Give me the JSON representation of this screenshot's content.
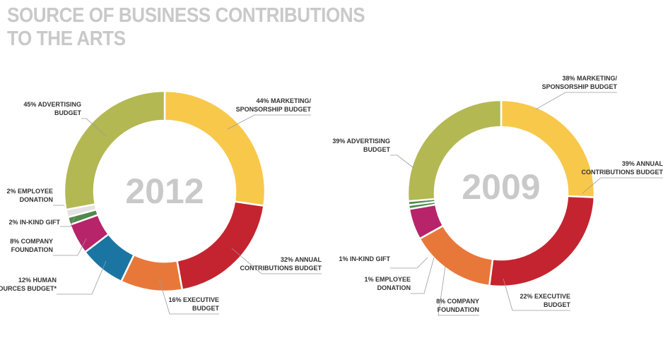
{
  "title": {
    "line1": "SOURCE OF BUSINESS CONTRIBUTIONS",
    "line2": "TO THE ARTS"
  },
  "chart_data": [
    {
      "type": "pie",
      "center_label": "2012",
      "slices": [
        {
          "value": 44,
          "label": [
            "44% MARKETING/",
            "SPONSORSHIP BUDGET"
          ],
          "color": "#f8c84b"
        },
        {
          "value": 32,
          "label": [
            "32% ANNUAL",
            "CONTRIBUTIONS BUDGET"
          ],
          "color": "#c4242f"
        },
        {
          "value": 16,
          "label": [
            "16% EXECUTIVE",
            "BUDGET"
          ],
          "color": "#e8783a"
        },
        {
          "value": 12,
          "label": [
            "12% HUMAN",
            "RESOURCES BUDGET*"
          ],
          "color": "#1a75a3"
        },
        {
          "value": 8,
          "label": [
            "8% COMPANY",
            "FOUNDATION"
          ],
          "color": "#b7246a"
        },
        {
          "value": 2,
          "label": [
            "2% IN-KIND GIFT"
          ],
          "color": "#4f8a4b"
        },
        {
          "value": 2,
          "label": [
            "2% EMPLOYEE",
            "DONATION"
          ],
          "color": "#e3e3e3"
        },
        {
          "value": 45,
          "label": [
            "45% ADVERTISING",
            "BUDGET"
          ],
          "color": "#b3b853"
        }
      ]
    },
    {
      "type": "pie",
      "center_label": "2009",
      "slices": [
        {
          "value": 38,
          "label": [
            "38% MARKETING/",
            "SPONSORSHIP BUDGET"
          ],
          "color": "#f8c84b"
        },
        {
          "value": 39,
          "label": [
            "39% ANNUAL",
            "CONTRIBUTIONS BUDGET"
          ],
          "color": "#c4242f"
        },
        {
          "value": 22,
          "label": [
            "22% EXECUTIVE",
            "BUDGET"
          ],
          "color": "#e8783a"
        },
        {
          "value": 8,
          "label": [
            "8% COMPANY",
            "FOUNDATION"
          ],
          "color": "#b7246a"
        },
        {
          "value": 1,
          "label": [
            "1% EMPLOYEE",
            "DONATION"
          ],
          "color": "#4f8a4b"
        },
        {
          "value": 1,
          "label": [
            "1% IN-KIND GIFT"
          ],
          "color": "#4f8a4b"
        },
        {
          "value": 39,
          "label": [
            "39% ADVERTISING",
            "BUDGET"
          ],
          "color": "#b3b853"
        }
      ]
    }
  ]
}
